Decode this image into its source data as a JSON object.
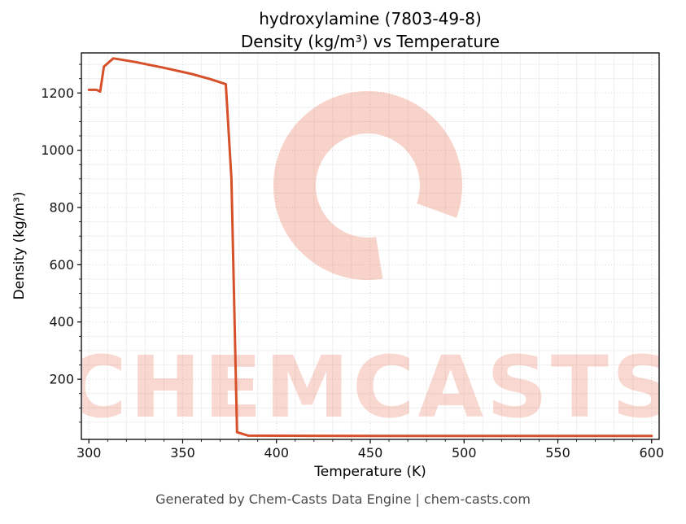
{
  "title": {
    "line1": "hydroxylamine (7803-49-8)",
    "line2": "Density (kg/m³) vs Temperature"
  },
  "footer": "Generated by Chem-Casts Data Engine | chem-casts.com",
  "watermark": {
    "text": "CHEMCASTS",
    "color": "#e0512c"
  },
  "chart_data": {
    "type": "line",
    "title": "hydroxylamine (7803-49-8) — Density (kg/m³) vs Temperature",
    "xlabel": "Temperature (K)",
    "ylabel": "Density (kg/m³)",
    "xlim": [
      296,
      604
    ],
    "ylim": [
      -10,
      1340
    ],
    "xticks": [
      300,
      350,
      400,
      450,
      500,
      550,
      600
    ],
    "yticks": [
      200,
      400,
      600,
      800,
      1000,
      1200
    ],
    "grid": true,
    "line_color": "#d6512a",
    "series": [
      {
        "name": "density",
        "x": [
          300,
          304,
          306,
          308,
          313,
          325,
          340,
          355,
          365,
          373,
          376,
          379,
          385,
          420,
          460,
          500,
          540,
          580,
          600
        ],
        "y": [
          1211,
          1211,
          1205,
          1292,
          1321,
          1308,
          1288,
          1266,
          1248,
          1231,
          900,
          15,
          3,
          2.5,
          2,
          2,
          2,
          2,
          2
        ]
      }
    ]
  }
}
